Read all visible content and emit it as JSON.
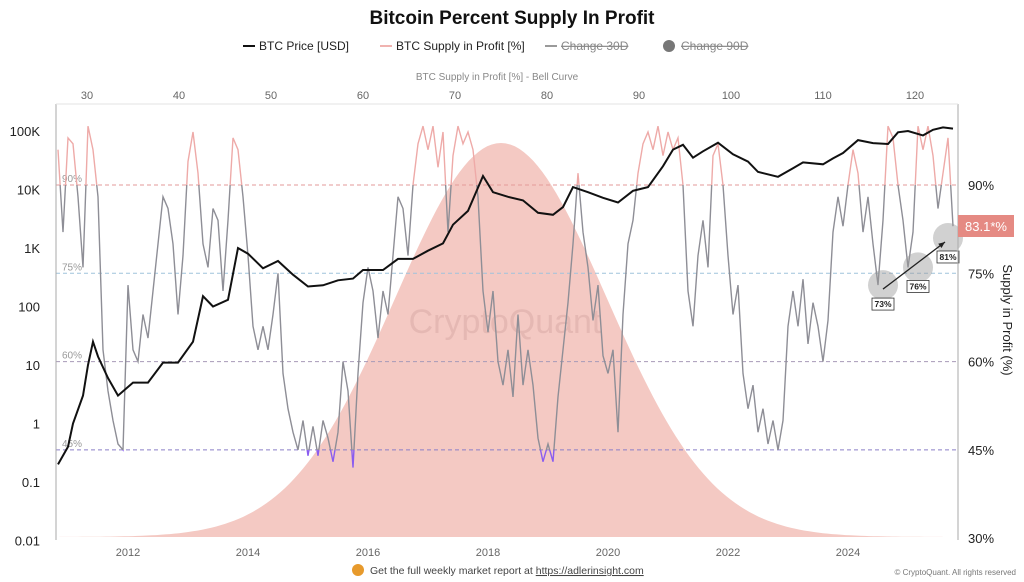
{
  "chart_data": {
    "type": "line",
    "title": "Bitcoin Percent Supply In Profit",
    "legend": [
      {
        "label": "BTC Price [USD]",
        "color": "#111111",
        "marker": "line"
      },
      {
        "label": "BTC Supply in Profit [%]",
        "color": "#f0b3b0",
        "marker": "line"
      },
      {
        "label": "Change 30D",
        "color": "#9a9a9a",
        "marker": "line",
        "struck": true
      },
      {
        "label": "Change 90D",
        "color": "#777777",
        "marker": "dot",
        "struck": true
      }
    ],
    "legend_position": "top",
    "x_axis": {
      "type": "date",
      "range": [
        "2010-09",
        "2025-11"
      ],
      "tick_labels": [
        "2012",
        "2014",
        "2016",
        "2018",
        "2020",
        "2022",
        "2024"
      ]
    },
    "y_left": {
      "scale": "log",
      "range": [
        0.01,
        290000
      ],
      "tick_labels": [
        "100K",
        "10K",
        "1K",
        "100",
        "10",
        "1",
        "0.1",
        "0.01"
      ]
    },
    "y_right": {
      "label": "Supply in Profit (%)",
      "range": [
        30,
        104
      ],
      "tick_labels": [
        "90%",
        "75%",
        "60%",
        "45%",
        "30%"
      ]
    },
    "x_top": {
      "label": "BTC Supply in Profit [%] - Bell Curve",
      "range": [
        26.7,
        124.9
      ],
      "tick_labels": [
        "30",
        "40",
        "50",
        "60",
        "70",
        "80",
        "90",
        "100",
        "110",
        "120"
      ]
    },
    "reference_lines": [
      {
        "value": 90,
        "label": "90%",
        "color": "#e39a9a"
      },
      {
        "value": 75,
        "label": "75%",
        "color": "#9fc3dc"
      },
      {
        "value": 60,
        "label": "60%",
        "color": "#a79ab8"
      },
      {
        "value": 45,
        "label": "45%",
        "color": "#8a7fc8"
      }
    ],
    "bell_curve": {
      "center": 75,
      "std": 11.5,
      "color": "#f4c9c3"
    },
    "zone_colors": {
      "above_90": "#eeaaa8",
      "middle": "#8e8e96",
      "below_45": "#8a5cf0"
    },
    "btc_price": [
      [
        "2010-11",
        0.2
      ],
      [
        "2011-01",
        0.4
      ],
      [
        "2011-02",
        1
      ],
      [
        "2011-04",
        3
      ],
      [
        "2011-05",
        10
      ],
      [
        "2011-06",
        25
      ],
      [
        "2011-07",
        14
      ],
      [
        "2011-09",
        6
      ],
      [
        "2011-11",
        3
      ],
      [
        "2012-02",
        5
      ],
      [
        "2012-05",
        5
      ],
      [
        "2012-08",
        11
      ],
      [
        "2012-11",
        11
      ],
      [
        "2013-02",
        25
      ],
      [
        "2013-04",
        150
      ],
      [
        "2013-06",
        100
      ],
      [
        "2013-09",
        130
      ],
      [
        "2013-11",
        1000
      ],
      [
        "2014-01",
        800
      ],
      [
        "2014-04",
        450
      ],
      [
        "2014-07",
        600
      ],
      [
        "2014-10",
        350
      ],
      [
        "2015-01",
        220
      ],
      [
        "2015-04",
        230
      ],
      [
        "2015-07",
        280
      ],
      [
        "2015-10",
        300
      ],
      [
        "2015-12",
        420
      ],
      [
        "2016-04",
        420
      ],
      [
        "2016-07",
        650
      ],
      [
        "2016-10",
        650
      ],
      [
        "2017-01",
        900
      ],
      [
        "2017-04",
        1200
      ],
      [
        "2017-06",
        2500
      ],
      [
        "2017-09",
        4300
      ],
      [
        "2017-12",
        17000
      ],
      [
        "2018-02",
        9000
      ],
      [
        "2018-05",
        7500
      ],
      [
        "2018-08",
        6500
      ],
      [
        "2018-11",
        4000
      ],
      [
        "2019-02",
        3700
      ],
      [
        "2019-04",
        5000
      ],
      [
        "2019-06",
        11000
      ],
      [
        "2019-09",
        9000
      ],
      [
        "2019-12",
        7200
      ],
      [
        "2020-03",
        6000
      ],
      [
        "2020-06",
        9500
      ],
      [
        "2020-09",
        11000
      ],
      [
        "2020-12",
        25000
      ],
      [
        "2021-02",
        48000
      ],
      [
        "2021-04",
        58000
      ],
      [
        "2021-06",
        35000
      ],
      [
        "2021-08",
        45000
      ],
      [
        "2021-11",
        63000
      ],
      [
        "2022-02",
        40000
      ],
      [
        "2022-05",
        30000
      ],
      [
        "2022-07",
        20000
      ],
      [
        "2022-11",
        16500
      ],
      [
        "2023-02",
        23000
      ],
      [
        "2023-04",
        29000
      ],
      [
        "2023-08",
        27000
      ],
      [
        "2023-10",
        34000
      ],
      [
        "2023-12",
        42000
      ],
      [
        "2024-03",
        70000
      ],
      [
        "2024-06",
        62000
      ],
      [
        "2024-09",
        60000
      ],
      [
        "2024-11",
        95000
      ],
      [
        "2025-01",
        100000
      ],
      [
        "2025-04",
        84000
      ],
      [
        "2025-06",
        105000
      ],
      [
        "2025-08",
        115000
      ],
      [
        "2025-10",
        110000
      ]
    ],
    "supply_in_profit_monthly": {
      "2010": [
        null,
        null,
        null,
        null,
        null,
        null,
        null,
        null,
        null,
        null,
        96,
        82
      ],
      "2011": [
        98,
        97,
        88,
        76,
        100,
        96,
        88,
        62,
        55,
        50,
        46,
        45
      ],
      "2012": [
        73,
        62,
        60,
        68,
        64,
        72,
        80,
        88,
        86,
        80,
        68,
        78
      ],
      "2013": [
        94,
        99,
        92,
        80,
        76,
        86,
        84,
        72,
        84,
        98,
        96,
        88
      ],
      "2014": [
        78,
        66,
        62,
        66,
        62,
        68,
        75,
        58,
        52,
        48,
        45,
        50
      ],
      "2015": [
        44,
        49,
        44,
        50,
        47,
        43,
        48,
        60,
        55,
        42,
        58,
        70
      ],
      "2016": [
        76,
        72,
        64,
        72,
        68,
        78,
        88,
        86,
        78,
        90,
        97,
        100
      ],
      "2017": [
        96,
        100,
        93,
        99,
        82,
        95,
        100,
        97,
        99,
        96,
        88,
        72
      ],
      "2018": [
        65,
        72,
        60,
        56,
        62,
        54,
        68,
        56,
        62,
        56,
        47,
        43
      ],
      "2019": [
        46,
        43,
        54,
        62,
        70,
        80,
        92,
        82,
        76,
        67,
        73,
        61
      ],
      "2020": [
        58,
        62,
        48,
        68,
        80,
        84,
        92,
        97,
        99,
        96,
        100,
        95
      ],
      "2021": [
        99,
        96,
        98,
        90,
        72,
        66,
        78,
        84,
        76,
        95,
        97,
        90
      ],
      "2022": [
        78,
        68,
        73,
        58,
        52,
        56,
        48,
        52,
        46,
        50,
        45,
        50
      ],
      "2023": [
        66,
        72,
        66,
        74,
        63,
        70,
        66,
        60,
        67,
        82,
        88,
        83
      ],
      "2024": [
        90,
        96,
        92,
        82,
        88,
        80,
        73,
        84,
        100,
        98,
        90,
        84
      ],
      "2025": [
        76,
        82,
        100,
        96,
        100,
        95,
        86,
        92,
        98,
        83,
        null,
        null
      ]
    },
    "current_value_label": "83.1*%",
    "current_value_color": "#e58a83",
    "annotations": [
      {
        "date": "2024-08",
        "value": 73,
        "label": "73%"
      },
      {
        "date": "2025-03",
        "value": 76,
        "label": "76%"
      },
      {
        "date": "2025-09",
        "value": 81,
        "label": "81%"
      }
    ],
    "grid": false
  },
  "watermark": "CryptoQuant",
  "footer": {
    "prefix": "Get the full weekly market report at ",
    "link": "https://adlerinsight.com",
    "copyright": "© CryptoQuant. All rights reserved"
  }
}
